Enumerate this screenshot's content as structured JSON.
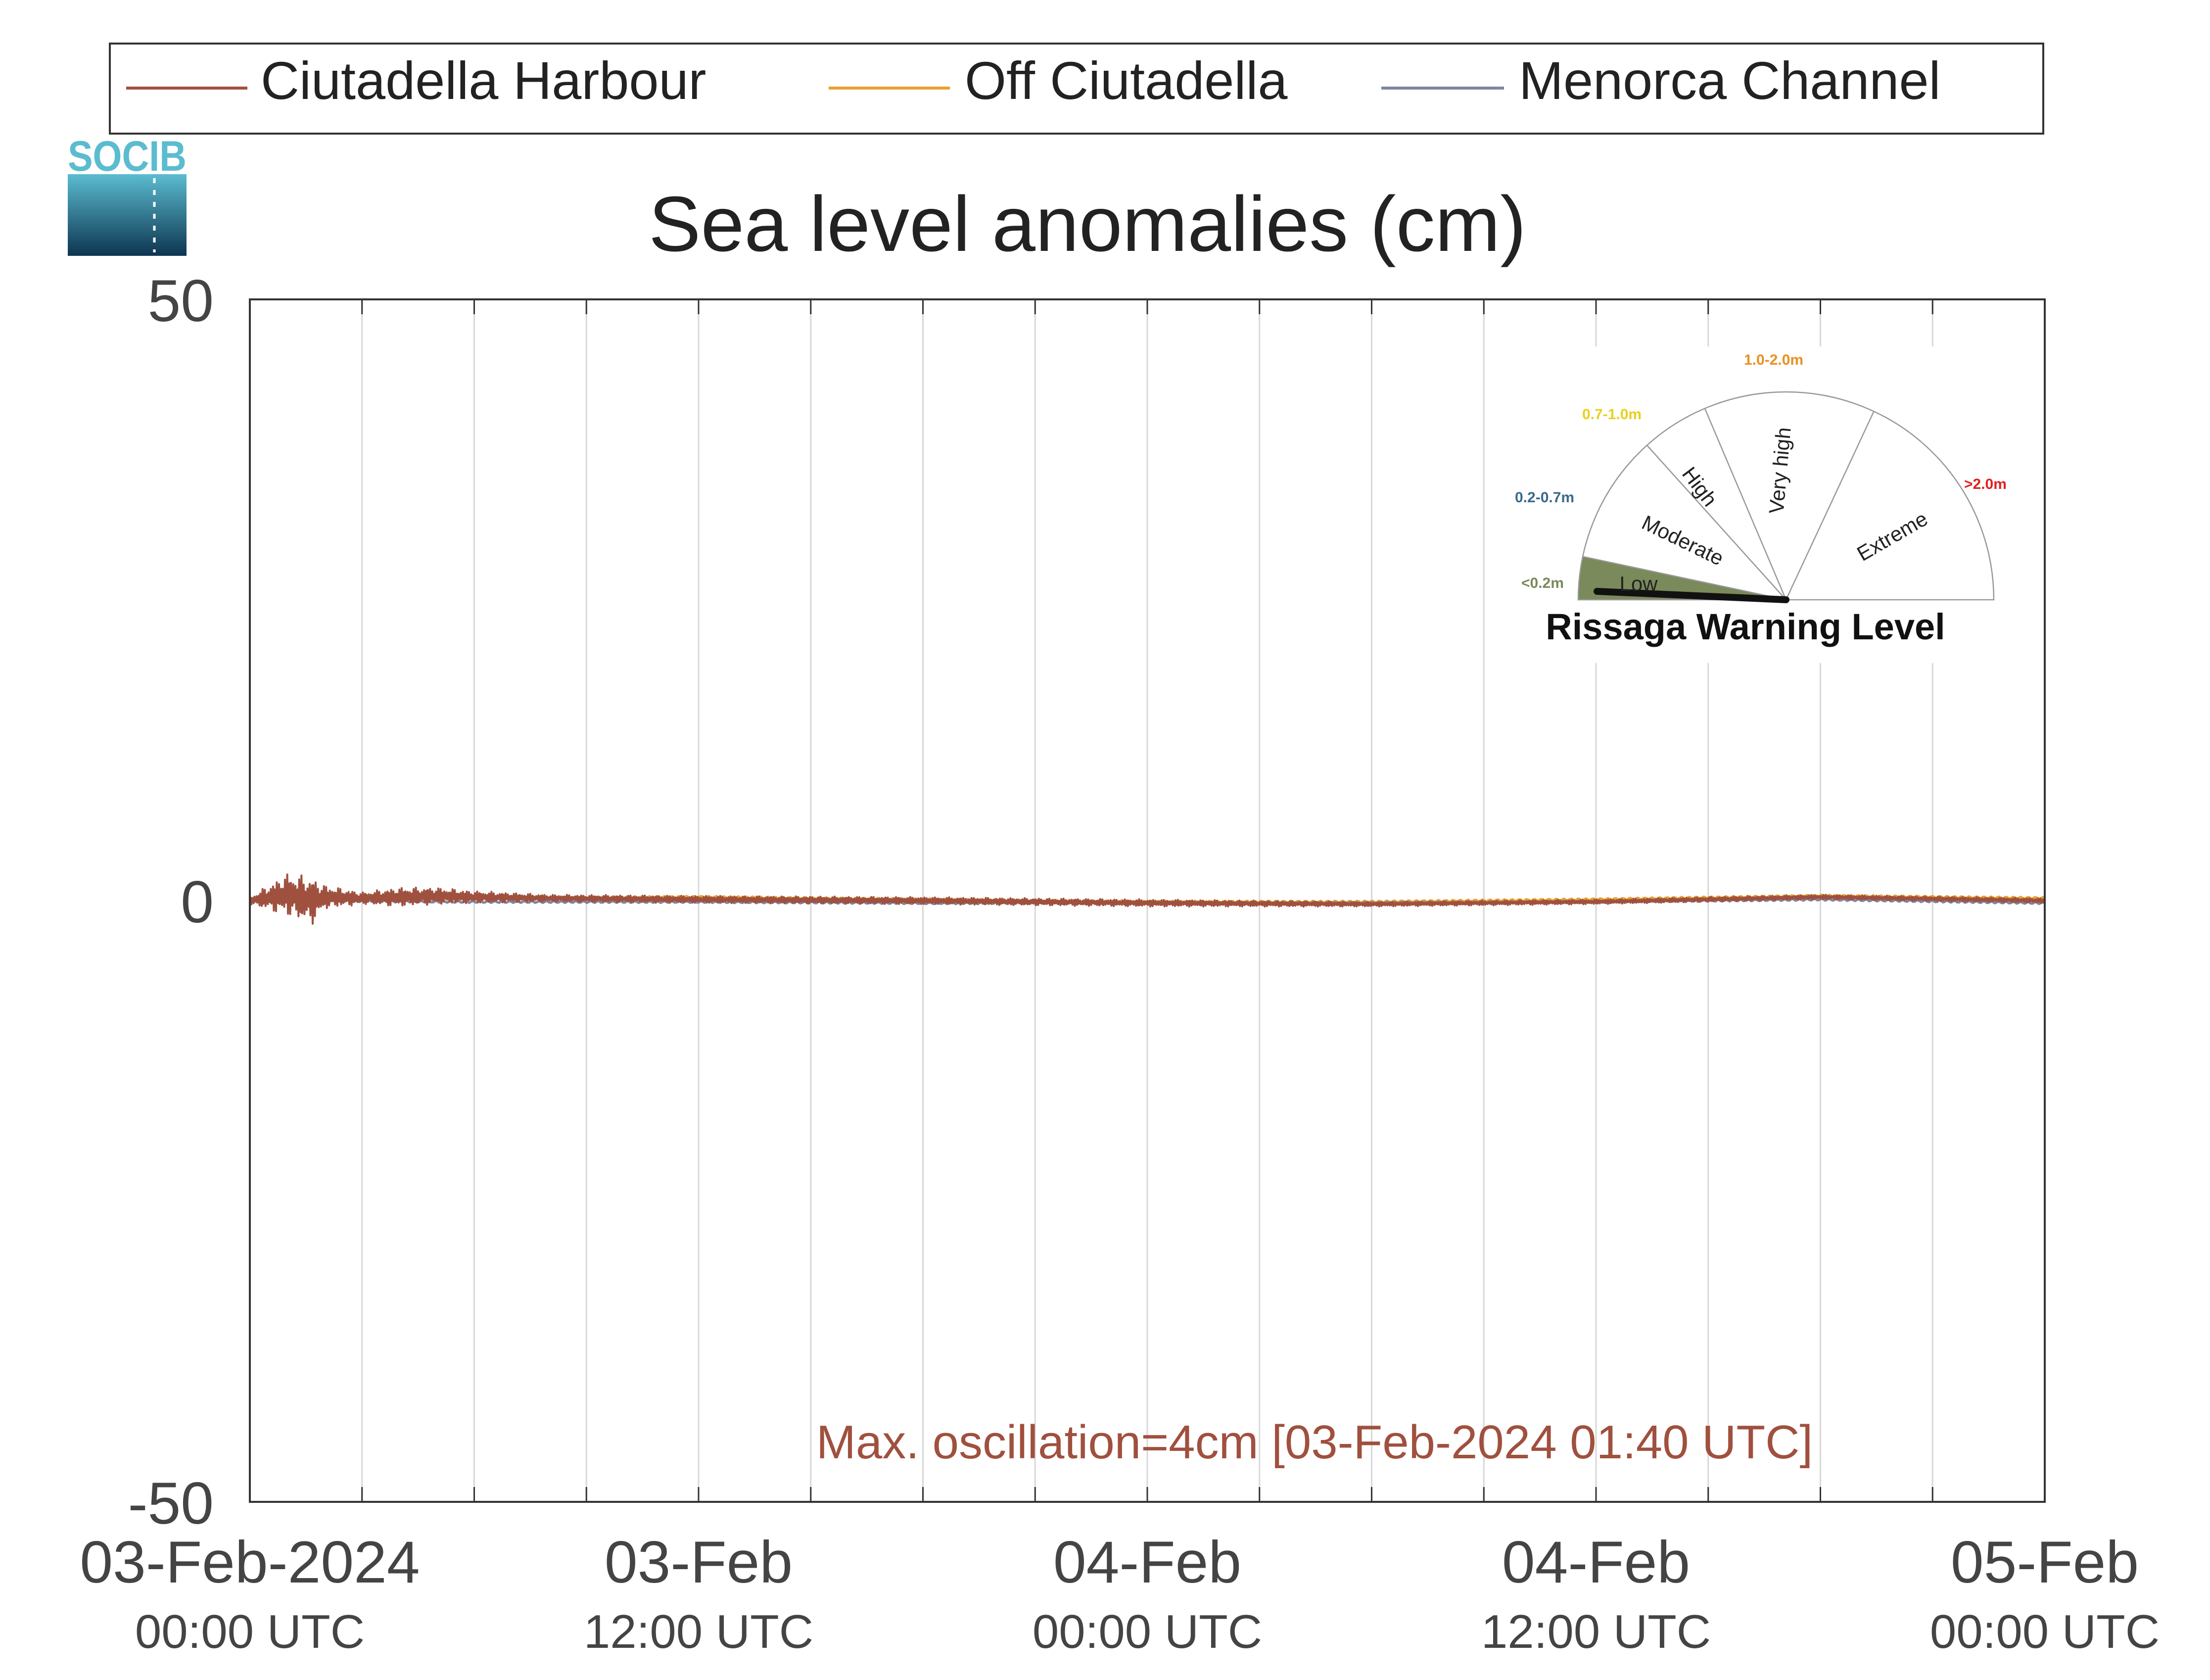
{
  "logo": {
    "text": "SOCIB"
  },
  "chart_data": {
    "type": "line",
    "title": "Sea level anomalies (cm)",
    "xlabel": "",
    "ylabel": "",
    "ylim": [
      -50,
      50
    ],
    "y_ticks": [
      {
        "value": 50,
        "label": "50"
      },
      {
        "value": 0,
        "label": "0"
      },
      {
        "value": -50,
        "label": "-50"
      }
    ],
    "x_range": [
      "2024-02-03T00:00Z",
      "2024-02-05T00:00Z"
    ],
    "x_ticks": [
      {
        "x": "2024-02-03T00:00Z",
        "date": "03-Feb-2024",
        "time": "00:00 UTC"
      },
      {
        "x": "2024-02-03T12:00Z",
        "date": "03-Feb",
        "time": "12:00 UTC"
      },
      {
        "x": "2024-02-04T00:00Z",
        "date": "04-Feb",
        "time": "00:00 UTC"
      },
      {
        "x": "2024-02-04T12:00Z",
        "date": "04-Feb",
        "time": "12:00 UTC"
      },
      {
        "x": "2024-02-05T00:00Z",
        "date": "05-Feb",
        "time": "00:00 UTC"
      }
    ],
    "grid": "vertical lines every 3 hours",
    "legend": {
      "placement": "top"
    },
    "series": [
      {
        "name": "Ciutadella Harbour",
        "color": "#a0503e",
        "x": [
          "2024-02-03T00:00Z",
          "2024-02-03T01:00Z",
          "2024-02-03T01:40Z",
          "2024-02-03T02:00Z",
          "2024-02-03T03:00Z",
          "2024-02-03T04:00Z",
          "2024-02-03T05:00Z",
          "2024-02-03T06:00Z",
          "2024-02-03T08:00Z",
          "2024-02-03T12:00Z",
          "2024-02-03T18:00Z",
          "2024-02-04T00:00Z",
          "2024-02-04T06:00Z",
          "2024-02-04T12:00Z",
          "2024-02-04T18:00Z",
          "2024-02-05T00:00Z"
        ],
        "values": [
          0,
          0.5,
          0,
          0.3,
          0.2,
          0.3,
          0.4,
          0.3,
          0.2,
          0.1,
          0,
          -0.2,
          -0.3,
          -0.1,
          0.3,
          0
        ],
        "amplitude": [
          0.3,
          1.8,
          2.0,
          1.0,
          0.5,
          0.8,
          0.7,
          0.5,
          0.3,
          0.3,
          0.3,
          0.3,
          0.2,
          0.2,
          0.2,
          0.2
        ]
      },
      {
        "name": "Off Ciutadella",
        "color": "#e8a030",
        "x": [
          "2024-02-03T00:00Z",
          "2024-02-03T06:00Z",
          "2024-02-03T12:00Z",
          "2024-02-03T18:00Z",
          "2024-02-04T00:00Z",
          "2024-02-04T06:00Z",
          "2024-02-04T12:00Z",
          "2024-02-04T18:00Z",
          "2024-02-05T00:00Z"
        ],
        "values": [
          0,
          0.2,
          0.3,
          0.1,
          -0.1,
          -0.1,
          0.1,
          0.4,
          0.2
        ]
      },
      {
        "name": "Menorca Channel",
        "color": "#8085a0",
        "x": [
          "2024-02-03T00:00Z",
          "2024-02-03T06:00Z",
          "2024-02-03T12:00Z",
          "2024-02-03T18:00Z",
          "2024-02-04T00:00Z",
          "2024-02-04T06:00Z",
          "2024-02-04T12:00Z",
          "2024-02-04T18:00Z",
          "2024-02-05T00:00Z"
        ],
        "values": [
          0,
          -0.1,
          -0.1,
          -0.2,
          -0.2,
          -0.2,
          -0.1,
          0.1,
          -0.2
        ]
      }
    ],
    "annotation": {
      "text": "Max. oscillation=4cm [03-Feb-2024 01:40 UTC]",
      "color": "#a0503e"
    }
  },
  "gauge": {
    "title": "Rissaga Warning Level",
    "current_level": "Low",
    "levels": [
      {
        "name": "Low",
        "range": "<0.2m",
        "color": "#7a8a5a"
      },
      {
        "name": "Moderate",
        "range": "0.2-0.7m",
        "color": "#3a6a8a"
      },
      {
        "name": "High",
        "range": "0.7-1.0m",
        "color": "#e8d020"
      },
      {
        "name": "Very high",
        "range": "1.0-2.0m",
        "color": "#e89020"
      },
      {
        "name": "Extreme",
        "range": ">2.0m",
        "color": "#e02020"
      }
    ]
  }
}
